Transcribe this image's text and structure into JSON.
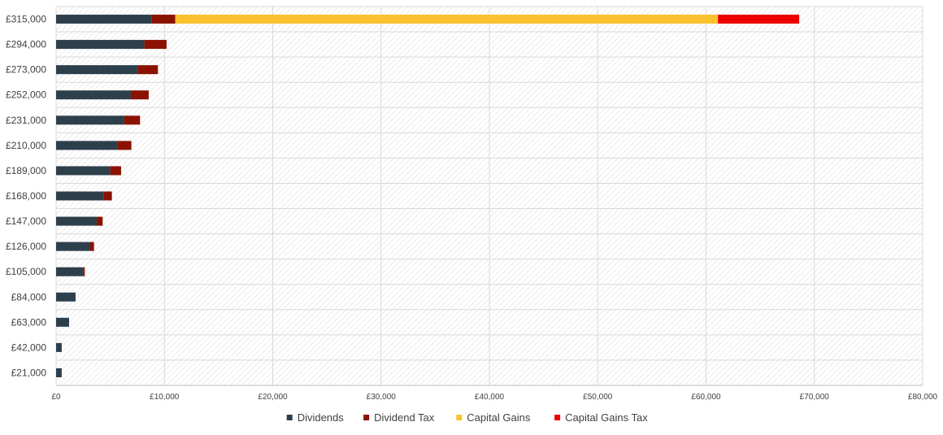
{
  "chart_data": {
    "type": "bar",
    "orientation": "horizontal",
    "stacked": true,
    "categories": [
      "£315,000",
      "£294,000",
      "£273,000",
      "£252,000",
      "£231,000",
      "£210,000",
      "£189,000",
      "£168,000",
      "£147,000",
      "£126,000",
      "£105,000",
      "£84,000",
      "£63,000",
      "£42,000",
      "£21,000"
    ],
    "series": [
      {
        "name": "Dividends",
        "color": "#2e3f4c",
        "values": [
          8800,
          8150,
          7550,
          6900,
          6300,
          5700,
          5000,
          4400,
          3750,
          3150,
          2500,
          1800,
          1200,
          520,
          520
        ]
      },
      {
        "name": "Dividend Tax",
        "color": "#8b1200",
        "values": [
          2200,
          2050,
          1850,
          1650,
          1450,
          1250,
          1000,
          750,
          550,
          350,
          150,
          0,
          0,
          0,
          0
        ]
      },
      {
        "name": "Capital Gains",
        "color": "#fbc02d",
        "values": [
          50100,
          0,
          0,
          0,
          0,
          0,
          0,
          0,
          0,
          0,
          0,
          0,
          0,
          0,
          0
        ]
      },
      {
        "name": "Capital Gains Tax",
        "color": "#ee0000",
        "values": [
          7500,
          0,
          0,
          0,
          0,
          0,
          0,
          0,
          0,
          0,
          0,
          0,
          0,
          0,
          0
        ]
      }
    ],
    "xlim": [
      0,
      80000
    ],
    "xticks": [
      0,
      10000,
      20000,
      30000,
      40000,
      50000,
      60000,
      70000,
      80000
    ],
    "xtick_labels": [
      "£0",
      "£10,000",
      "£20,000",
      "£30,000",
      "£40,000",
      "£50,000",
      "£60,000",
      "£70,000",
      "£80,000"
    ],
    "title": "",
    "xlabel": "",
    "ylabel": "",
    "grid": true,
    "legend_position": "bottom"
  }
}
